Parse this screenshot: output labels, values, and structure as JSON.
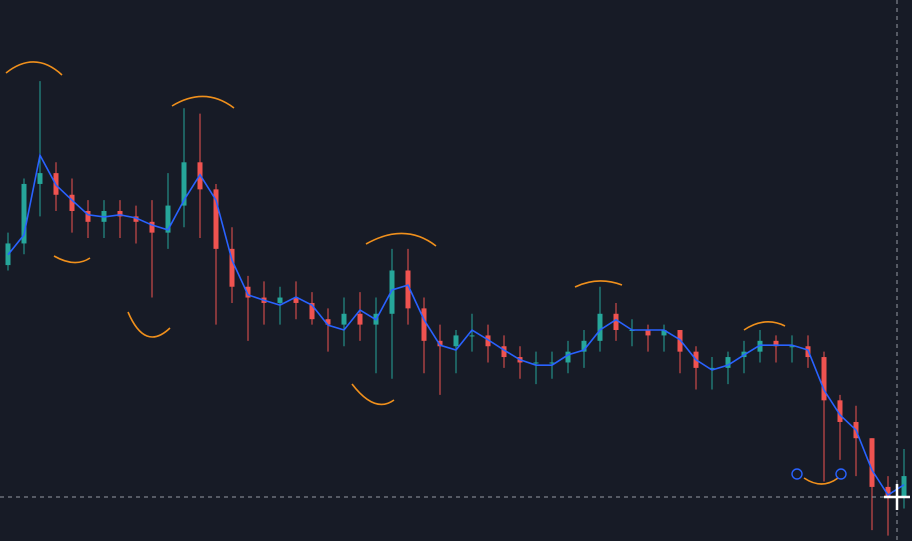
{
  "chart_data": {
    "type": "candlestick",
    "ylim": [
      0,
      100
    ],
    "up_color": "#26a69a",
    "down_color": "#ef5350",
    "high": [
      57,
      67,
      85,
      70,
      67,
      63,
      63,
      63,
      62,
      63,
      68,
      80,
      79,
      66,
      58,
      49,
      48,
      47,
      48,
      46,
      43,
      45,
      46,
      45,
      54,
      54,
      45,
      40,
      39,
      42,
      40,
      38,
      36,
      35,
      35,
      37,
      39,
      47,
      44,
      41,
      40,
      40,
      39,
      36,
      34,
      35,
      37,
      39,
      38,
      38,
      38,
      35,
      27,
      25,
      19,
      12,
      17
    ],
    "low": [
      50,
      53,
      60,
      61,
      57,
      56,
      56,
      56,
      55,
      45,
      54,
      58,
      56,
      40,
      44,
      37,
      40,
      40,
      41,
      40,
      35,
      36,
      37,
      31,
      30,
      40,
      31,
      27,
      31,
      35,
      33,
      32,
      30,
      29,
      30,
      31,
      32,
      35,
      37,
      36,
      35,
      35,
      31,
      28,
      28,
      29,
      31,
      33,
      33,
      33,
      32,
      11,
      15,
      12,
      2,
      1,
      6
    ],
    "open": [
      51,
      55,
      66,
      68,
      64,
      61,
      59,
      61,
      60,
      59,
      57,
      62,
      70,
      65,
      54,
      47,
      45,
      44,
      45,
      44,
      41,
      40,
      42,
      40,
      42,
      50,
      43,
      37,
      36,
      38,
      38,
      36,
      34,
      33,
      33,
      33,
      35,
      37,
      42,
      39,
      39,
      38,
      39,
      35,
      32,
      32,
      34,
      35,
      37,
      36,
      36,
      34,
      26,
      22,
      19,
      10,
      8
    ],
    "close": [
      55,
      66,
      68,
      64,
      61,
      59,
      61,
      60,
      59,
      57,
      62,
      70,
      65,
      54,
      47,
      45,
      44,
      45,
      44,
      41,
      40,
      42,
      40,
      42,
      50,
      43,
      37,
      36,
      38,
      38,
      36,
      34,
      33,
      33,
      33,
      35,
      37,
      42,
      39,
      39,
      38,
      39,
      35,
      32,
      32,
      34,
      35,
      37,
      36,
      36,
      34,
      26,
      22,
      19,
      10,
      8,
      12
    ],
    "moving_average": {
      "color": "#2962ff",
      "values": [
        52.9,
        56.6,
        71.3,
        65.8,
        63.0,
        60.3,
        59.9,
        60.3,
        59.7,
        58.4,
        57.5,
        63.0,
        67.7,
        63.0,
        51.9,
        45.5,
        44.5,
        43.6,
        45.1,
        43.6,
        39.9,
        39.0,
        42.7,
        40.9,
        46.4,
        47.3,
        40.9,
        36.2,
        35.3,
        39.0,
        37.2,
        35.3,
        33.5,
        32.5,
        32.5,
        34.4,
        35.3,
        39.0,
        40.9,
        39.0,
        39.0,
        39.0,
        37.2,
        33.5,
        31.6,
        32.5,
        34.4,
        36.2,
        36.2,
        36.2,
        35.3,
        27.9,
        23.3,
        20.5,
        13.1,
        8.5,
        10.4
      ]
    }
  }
}
